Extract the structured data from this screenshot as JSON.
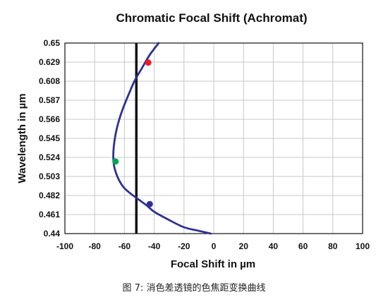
{
  "chart_data": {
    "type": "line",
    "title": "Chromatic Focal Shift (Achromat)",
    "xlabel": "Focal Shift in µm",
    "ylabel": "Wavelength in µm",
    "xlim": [
      -100,
      100
    ],
    "ylim": [
      0.44,
      0.65
    ],
    "x_ticks": [
      -100,
      -80,
      -60,
      -40,
      -20,
      0,
      20,
      40,
      60,
      80,
      100
    ],
    "y_ticks": [
      0.44,
      0.461,
      0.482,
      0.503,
      0.524,
      0.545,
      0.566,
      0.587,
      0.608,
      0.629,
      0.65
    ],
    "y_tick_labels": [
      "0.44",
      "0.461",
      "0.482",
      "0.503",
      "0.524",
      "0.545",
      "0.566",
      "0.587",
      "0.608",
      "0.629",
      "0.65"
    ],
    "grid": true,
    "series": [
      {
        "color": "#2e3192",
        "points": [
          [
            -2,
            0.44
          ],
          [
            -10,
            0.443
          ],
          [
            -20,
            0.447
          ],
          [
            -30,
            0.455
          ],
          [
            -40,
            0.464
          ],
          [
            -45,
            0.471
          ],
          [
            -50,
            0.477
          ],
          [
            -55,
            0.483
          ],
          [
            -60,
            0.49
          ],
          [
            -63,
            0.497
          ],
          [
            -65.5,
            0.506
          ],
          [
            -67,
            0.515
          ],
          [
            -67.5,
            0.524
          ],
          [
            -67.2,
            0.535
          ],
          [
            -66,
            0.549
          ],
          [
            -64,
            0.563
          ],
          [
            -61,
            0.578
          ],
          [
            -57,
            0.594
          ],
          [
            -53,
            0.609
          ],
          [
            -48,
            0.623
          ],
          [
            -43,
            0.637
          ],
          [
            -37,
            0.65
          ]
        ]
      }
    ],
    "reference_line": {
      "x": -52,
      "color": "#111111"
    },
    "markers": [
      {
        "x": -44,
        "y": 0.6285,
        "color": "#ed1c24"
      },
      {
        "x": -66,
        "y": 0.5195,
        "color": "#00a651"
      },
      {
        "x": -43,
        "y": 0.4725,
        "color": "#2e3192"
      }
    ]
  },
  "caption": "图 7: 消色差透镜的色焦距变换曲线"
}
